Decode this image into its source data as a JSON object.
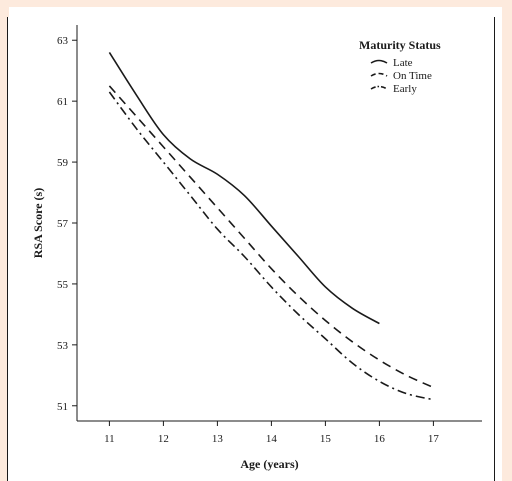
{
  "chart_data": {
    "type": "line",
    "xlabel": "Age (years)",
    "ylabel": "RSA Score (s)",
    "xlim": [
      10.4,
      17.9
    ],
    "ylim": [
      50.5,
      63.5
    ],
    "xticks": [
      11,
      12,
      13,
      14,
      15,
      16,
      17
    ],
    "yticks": [
      51,
      53,
      55,
      57,
      59,
      61,
      63
    ],
    "legend": {
      "title": "Maturity Status",
      "placement": "top-right"
    },
    "series": [
      {
        "name": "Late",
        "style": "solid",
        "points": [
          [
            11,
            62.6
          ],
          [
            11.5,
            61.2
          ],
          [
            12,
            59.9
          ],
          [
            12.5,
            59.1
          ],
          [
            13,
            58.6
          ],
          [
            13.5,
            57.9
          ],
          [
            14,
            56.9
          ],
          [
            14.5,
            55.9
          ],
          [
            15,
            54.9
          ],
          [
            15.5,
            54.2
          ],
          [
            16,
            53.7
          ]
        ]
      },
      {
        "name": "On Time",
        "style": "dashed",
        "points": [
          [
            11,
            61.5
          ],
          [
            11.5,
            60.5
          ],
          [
            12,
            59.5
          ],
          [
            12.5,
            58.5
          ],
          [
            13,
            57.5
          ],
          [
            13.5,
            56.5
          ],
          [
            14,
            55.5
          ],
          [
            14.5,
            54.6
          ],
          [
            15,
            53.8
          ],
          [
            15.5,
            53.1
          ],
          [
            16,
            52.5
          ],
          [
            16.5,
            52.0
          ],
          [
            17,
            51.6
          ]
        ]
      },
      {
        "name": "Early",
        "style": "dashdot",
        "points": [
          [
            11,
            61.3
          ],
          [
            11.5,
            60.1
          ],
          [
            12,
            59.0
          ],
          [
            12.5,
            57.9
          ],
          [
            13,
            56.8
          ],
          [
            13.5,
            55.9
          ],
          [
            14,
            54.9
          ],
          [
            14.5,
            54.0
          ],
          [
            15,
            53.2
          ],
          [
            15.5,
            52.4
          ],
          [
            16,
            51.8
          ],
          [
            16.5,
            51.4
          ],
          [
            17,
            51.2
          ]
        ]
      }
    ],
    "grid": false
  }
}
